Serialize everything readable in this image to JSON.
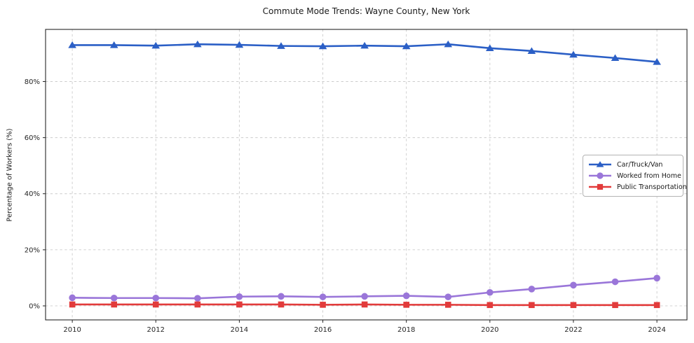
{
  "chart_data": {
    "type": "line",
    "title": "Commute Mode Trends: Wayne County, New York",
    "xlabel": "",
    "ylabel": "Percentage of Workers (%)",
    "x": [
      2010,
      2011,
      2012,
      2013,
      2014,
      2015,
      2016,
      2017,
      2018,
      2019,
      2020,
      2021,
      2022,
      2023,
      2024
    ],
    "series": [
      {
        "name": "Car/Truck/Van",
        "marker": "triangle",
        "color": "#2b5fc6",
        "values": [
          93.0,
          93.0,
          92.8,
          93.3,
          93.1,
          92.7,
          92.6,
          92.8,
          92.6,
          93.3,
          91.9,
          90.9,
          89.6,
          88.4,
          87.0
        ]
      },
      {
        "name": "Worked from Home",
        "marker": "circle",
        "color": "#9a76d9",
        "values": [
          2.9,
          2.8,
          2.8,
          2.7,
          3.3,
          3.4,
          3.2,
          3.4,
          3.6,
          3.2,
          4.8,
          6.0,
          7.4,
          8.6,
          9.9
        ]
      },
      {
        "name": "Public Transportation",
        "marker": "square",
        "color": "#e23b3b",
        "values": [
          0.5,
          0.5,
          0.5,
          0.5,
          0.5,
          0.5,
          0.4,
          0.5,
          0.4,
          0.4,
          0.3,
          0.3,
          0.3,
          0.3,
          0.3
        ]
      }
    ],
    "xticks": [
      2010,
      2012,
      2014,
      2016,
      2018,
      2020,
      2022,
      2024
    ],
    "yticks": [
      0,
      20,
      40,
      60,
      80
    ],
    "ytick_labels": [
      "0%",
      "20%",
      "40%",
      "60%",
      "80%"
    ],
    "xlim": [
      2009.36,
      2024.72
    ],
    "ylim": [
      -5.0,
      98.6
    ],
    "grid": true,
    "grid_style": "dashed",
    "grid_color": "#cccccc",
    "frame_color": "#262626",
    "legend_position": "center-right"
  }
}
